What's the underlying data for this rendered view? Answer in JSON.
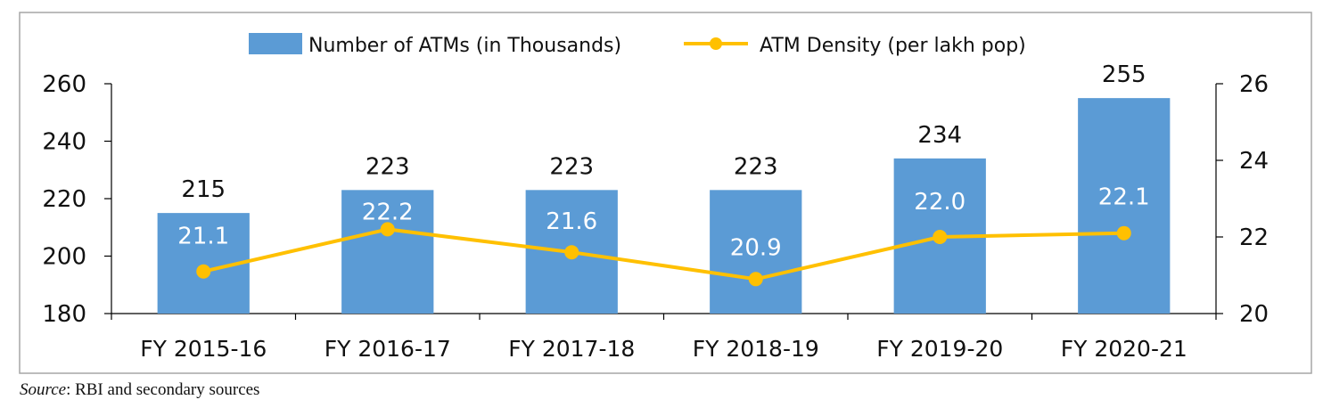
{
  "chart_data": {
    "type": "bar",
    "categories": [
      "FY 2015-16",
      "FY 2016-17",
      "FY 2017-18",
      "FY 2018-19",
      "FY 2019-20",
      "FY 2020-21"
    ],
    "series": [
      {
        "name": "Number of ATMs (in Thousands)",
        "kind": "bar",
        "axis": "left",
        "color": "#5B9BD5",
        "values": [
          215,
          223,
          223,
          223,
          234,
          255
        ],
        "labels": [
          "215",
          "223",
          "223",
          "223",
          "234",
          "255"
        ]
      },
      {
        "name": "ATM Density (per lakh pop)",
        "kind": "line",
        "axis": "right",
        "color": "#FFC000",
        "values": [
          21.1,
          22.2,
          21.6,
          20.9,
          22.0,
          22.1
        ],
        "labels": [
          "21.1",
          "22.2",
          "21.6",
          "20.9",
          "22.0",
          "22.1"
        ]
      }
    ],
    "y_left": {
      "lim": [
        180,
        260
      ],
      "ticks": [
        180,
        200,
        220,
        240,
        260
      ],
      "tick_labels": [
        "180",
        "200",
        "220",
        "240",
        "260"
      ]
    },
    "y_right": {
      "lim": [
        20,
        26
      ],
      "ticks": [
        20,
        22,
        24,
        26
      ],
      "tick_labels": [
        "20",
        "22",
        "24",
        "26"
      ]
    },
    "legend": "top",
    "grid": false
  },
  "source": {
    "prefix": "Source",
    "text": ": RBI and secondary sources"
  }
}
